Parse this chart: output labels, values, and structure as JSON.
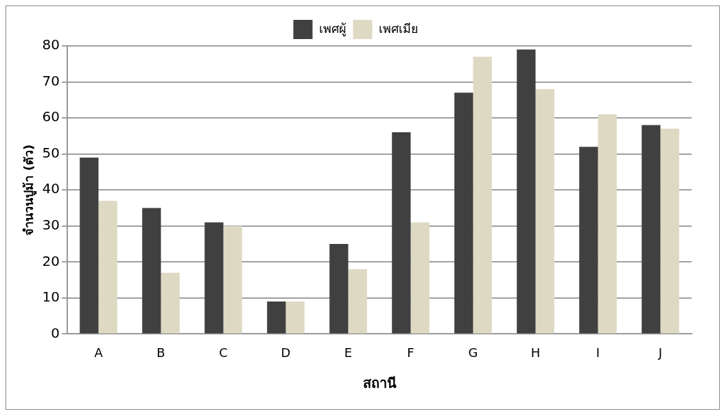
{
  "chart_data": {
    "type": "bar",
    "xlabel": "สถานี",
    "ylabel": "จำนวนปูม้า (ตัว)",
    "categories": [
      "A",
      "B",
      "C",
      "D",
      "E",
      "F",
      "G",
      "H",
      "I",
      "J"
    ],
    "series": [
      {
        "name": "เพศผู้",
        "color": "#404040",
        "values": [
          49,
          35,
          31,
          9,
          25,
          56,
          67,
          79,
          52,
          58
        ]
      },
      {
        "name": "เพศเมีย",
        "color": "#ddd9c3",
        "values": [
          37,
          17,
          30,
          9,
          18,
          31,
          77,
          68,
          61,
          57
        ]
      }
    ],
    "ylim": [
      0,
      80
    ],
    "yticks": [
      0,
      10,
      20,
      30,
      40,
      50,
      60,
      70,
      80
    ],
    "grid": "y",
    "legend": "top"
  }
}
